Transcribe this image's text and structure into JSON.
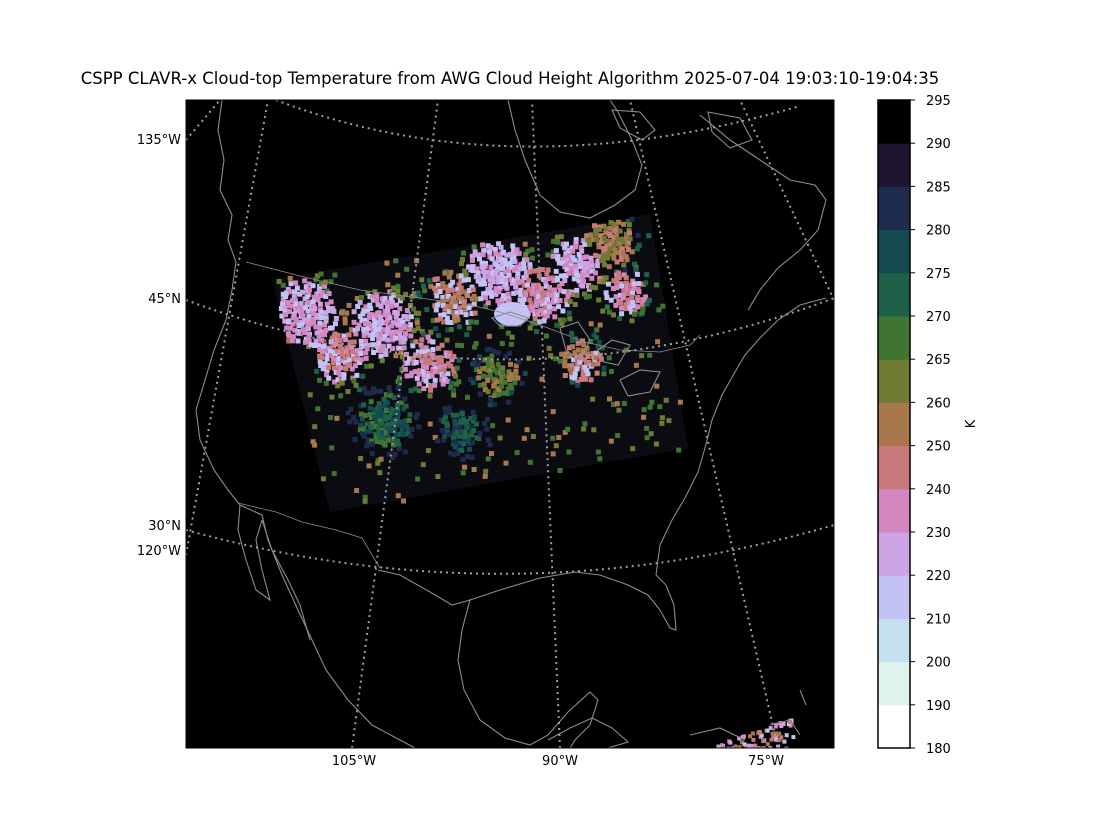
{
  "figure": {
    "title": "CSPP CLAVR-x Cloud-top Temperature from AWG Cloud Height Algorithm 2025-07-04 19:03:10-19:04:35"
  },
  "map": {
    "lon_labels": [
      "105°W",
      "90°W",
      "75°W"
    ],
    "lat_labels": [
      "135°W",
      "45°N",
      "30°N",
      "120°W"
    ],
    "background_color": "#000000",
    "coastline_color": "#8c8c8c",
    "graticule_color": "#a0a0a0"
  },
  "colorbar": {
    "unit_label": "K",
    "levels": [
      "180",
      "190",
      "200",
      "210",
      "220",
      "230",
      "240",
      "250",
      "260",
      "265",
      "270",
      "275",
      "280",
      "285",
      "290",
      "295"
    ],
    "colors": [
      "#ffffff",
      "#def3ee",
      "#c6e0f1",
      "#c3c2f4",
      "#cda3e6",
      "#d486c0",
      "#c87a7a",
      "#a8784c",
      "#6f7a32",
      "#3f7432",
      "#1f6148",
      "#154a50",
      "#1e2b4d",
      "#1e1530",
      "#000000"
    ]
  },
  "cloud_colors": [
    "#cda3e6",
    "#d486c0",
    "#c3c2f4",
    "#c87a7a",
    "#a8784c",
    "#6f7a32",
    "#3f7432",
    "#1f6148",
    "#154a50",
    "#1e2b4d"
  ]
}
